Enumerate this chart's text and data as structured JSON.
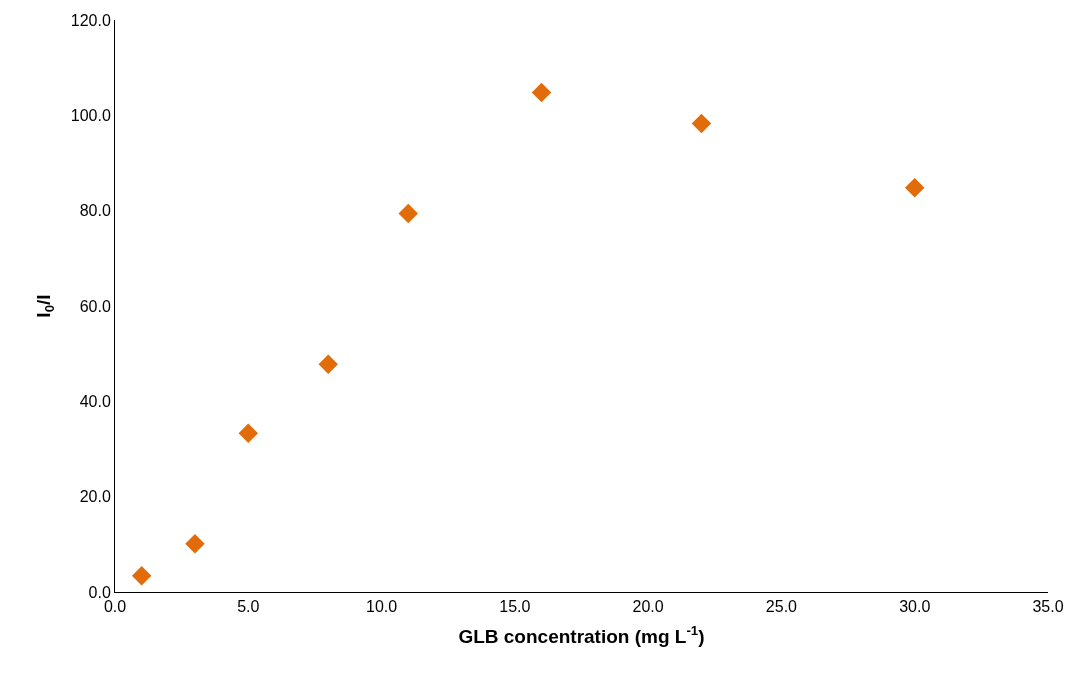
{
  "chart_data": {
    "type": "scatter",
    "xlabel": "GLB concentration (mg L$^{-1}$)",
    "ylabel": "I$_{0}$/I",
    "marker": "diamond",
    "x": [
      1,
      3,
      5,
      8,
      11,
      16,
      22,
      30
    ],
    "series": [
      {
        "color": "#e36c0a",
        "values": [
          3.4,
          10.1,
          33.3,
          47.8,
          79.4,
          104.8,
          98.3,
          84.8
        ]
      }
    ],
    "xlim": [
      0,
      35
    ],
    "xticks": [
      {
        "value": 0,
        "label": "0.0"
      },
      {
        "value": 5,
        "label": "5.0"
      },
      {
        "value": 10,
        "label": "10.0"
      },
      {
        "value": 15,
        "label": "15.0"
      },
      {
        "value": 20,
        "label": "20.0"
      },
      {
        "value": 25,
        "label": "25.0"
      },
      {
        "value": 30,
        "label": "30.0"
      },
      {
        "value": 35,
        "label": "35.0"
      }
    ],
    "ylim": [
      0,
      120
    ],
    "yticks": [
      {
        "value": 0,
        "label": "0.0"
      },
      {
        "value": 20,
        "label": "20.0"
      },
      {
        "value": 40,
        "label": "40.0"
      },
      {
        "value": 60,
        "label": "60.0"
      },
      {
        "value": 80,
        "label": "80.0"
      },
      {
        "value": 100,
        "label": "100.0"
      },
      {
        "value": 120,
        "label": "120.0"
      }
    ]
  }
}
